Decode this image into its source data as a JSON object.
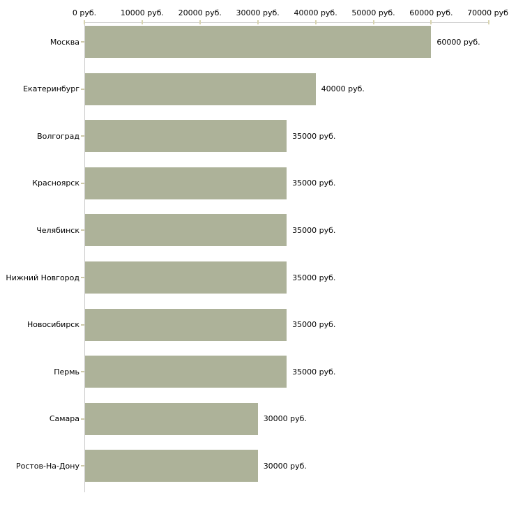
{
  "chart_data": {
    "type": "bar",
    "orientation": "horizontal",
    "title": "",
    "categories": [
      "Москва",
      "Екатеринбург",
      "Волгоград",
      "Красноярск",
      "Челябинск",
      "Нижний Новгород",
      "Новосибирск",
      "Пермь",
      "Самара",
      "Ростов-На-Дону"
    ],
    "values": [
      60000,
      40000,
      35000,
      35000,
      35000,
      35000,
      35000,
      35000,
      30000,
      30000
    ],
    "value_labels": [
      "60000 руб.",
      "40000 руб.",
      "35000 руб.",
      "35000 руб.",
      "35000 руб.",
      "35000 руб.",
      "35000 руб.",
      "35000 руб.",
      "30000 руб.",
      "30000 руб."
    ],
    "unit": "руб.",
    "x_axis": {
      "position": "top",
      "range": [
        0,
        70000
      ],
      "ticks": [
        0,
        10000,
        20000,
        30000,
        40000,
        50000,
        60000,
        70000
      ],
      "tick_labels": [
        "0 руб.",
        "10000 руб.",
        "20000 руб.",
        "30000 руб.",
        "40000 руб.",
        "50000 руб.",
        "60000 руб.",
        "70000 руб."
      ]
    },
    "grid": false,
    "legend": false,
    "colors": {
      "bar": "#adb299",
      "axis_line": "#c9c9c9",
      "tick_mark": "#d8d4b0",
      "category_tick": "#cdc9a9",
      "text": "#000000",
      "background": "#ffffff"
    }
  }
}
